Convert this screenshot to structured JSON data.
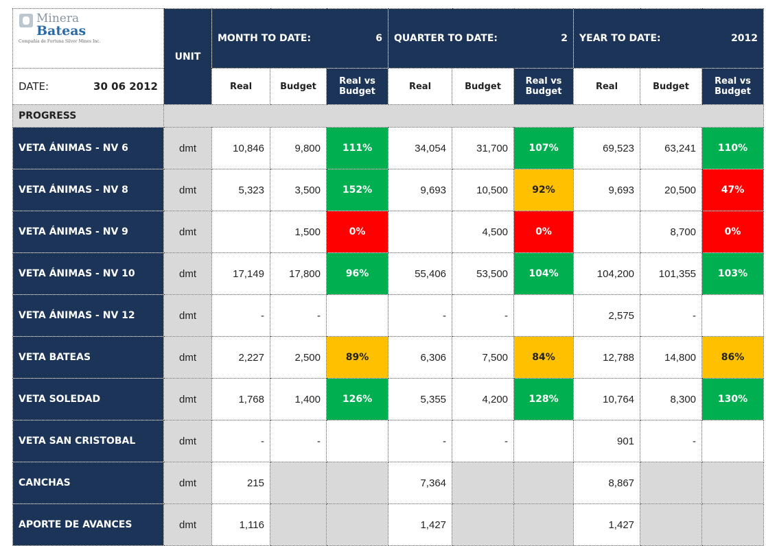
{
  "header": {
    "logo": {
      "name_top": "Minera",
      "name_bottom": "Bateas",
      "tagline": "Compañía de Fortuna Silver Mines Inc."
    },
    "date_label": "DATE:",
    "date": "30 06 2012",
    "unit": "UNIT",
    "periods": [
      {
        "label": "MONTH TO DATE:",
        "value": "6"
      },
      {
        "label": "QUARTER TO DATE:",
        "value": "2"
      },
      {
        "label": "YEAR TO DATE:",
        "value": "2012"
      }
    ],
    "columns": [
      "Real",
      "Budget",
      "Real vs Budget",
      "Real",
      "Budget",
      "Real vs Budget",
      "Real",
      "Budget",
      "Real vs Budget"
    ]
  },
  "section": "PROGRESS",
  "table": {
    "rows": [
      {
        "label": "VETA ÁNIMAS - NV 6",
        "unit": "dmt",
        "cells": [
          "10,846",
          "9,800",
          "111%",
          "34,054",
          "31,700",
          "107%",
          "69,523",
          "63,241",
          "110%"
        ],
        "fills": [
          null,
          null,
          "#00b050",
          null,
          null,
          "#00b050",
          null,
          null,
          "#00b050"
        ]
      },
      {
        "label": "VETA ÁNIMAS - NV 8",
        "unit": "dmt",
        "cells": [
          "5,323",
          "3,500",
          "152%",
          "9,693",
          "10,500",
          "92%",
          "9,693",
          "20,500",
          "47%"
        ],
        "fills": [
          null,
          null,
          "#00b050",
          null,
          null,
          "#ffc000",
          null,
          null,
          "#ff0000"
        ]
      },
      {
        "label": "VETA ÁNIMAS - NV 9",
        "unit": "dmt",
        "cells": [
          null,
          "1,500",
          "0%",
          null,
          "4,500",
          "0%",
          null,
          "8,700",
          "0%"
        ],
        "fills": [
          null,
          null,
          "#ff0000",
          null,
          null,
          "#ff0000",
          null,
          null,
          "#ff0000"
        ]
      },
      {
        "label": "VETA ÁNIMAS - NV 10",
        "unit": "dmt",
        "cells": [
          "17,149",
          "17,800",
          "96%",
          "55,406",
          "53,500",
          "104%",
          "104,200",
          "101,355",
          "103%"
        ],
        "fills": [
          null,
          null,
          "#00b050",
          null,
          null,
          "#00b050",
          null,
          null,
          "#00b050"
        ]
      },
      {
        "label": "VETA ÁNIMAS - NV 12",
        "unit": "dmt",
        "cells": [
          "-",
          "-",
          null,
          "-",
          "-",
          null,
          "2,575",
          "-",
          null
        ],
        "fills": [
          null,
          null,
          null,
          null,
          null,
          null,
          null,
          null,
          null
        ]
      },
      {
        "label": "VETA BATEAS",
        "unit": "dmt",
        "cells": [
          "2,227",
          "2,500",
          "89%",
          "6,306",
          "7,500",
          "84%",
          "12,788",
          "14,800",
          "86%"
        ],
        "fills": [
          null,
          null,
          "#ffc000",
          null,
          null,
          "#ffc000",
          null,
          null,
          "#ffc000"
        ]
      },
      {
        "label": "VETA SOLEDAD",
        "unit": "dmt",
        "cells": [
          "1,768",
          "1,400",
          "126%",
          "5,355",
          "4,200",
          "128%",
          "10,764",
          "8,300",
          "130%"
        ],
        "fills": [
          null,
          null,
          "#00b050",
          null,
          null,
          "#00b050",
          null,
          null,
          "#00b050"
        ]
      },
      {
        "label": "VETA SAN CRISTOBAL",
        "unit": "dmt",
        "cells": [
          "-",
          "-",
          null,
          "-",
          "-",
          null,
          "901",
          "-",
          null
        ],
        "fills": [
          null,
          null,
          null,
          null,
          null,
          null,
          null,
          null,
          null
        ]
      },
      {
        "label": "CANCHAS",
        "unit": "dmt",
        "cells": [
          "215",
          null,
          null,
          "7,364",
          null,
          null,
          "8,867",
          null,
          null
        ],
        "fills": [
          null,
          "#d9d9d9",
          "#d9d9d9",
          null,
          "#d9d9d9",
          "#d9d9d9",
          null,
          "#d9d9d9",
          "#d9d9d9"
        ]
      },
      {
        "label": "APORTE DE AVANCES",
        "unit": "dmt",
        "cells": [
          "1,116",
          null,
          null,
          "1,427",
          null,
          null,
          "1,427",
          null,
          null
        ],
        "fills": [
          null,
          "#d9d9d9",
          "#d9d9d9",
          null,
          "#d9d9d9",
          "#d9d9d9",
          null,
          "#d9d9d9",
          "#d9d9d9"
        ]
      }
    ]
  }
}
